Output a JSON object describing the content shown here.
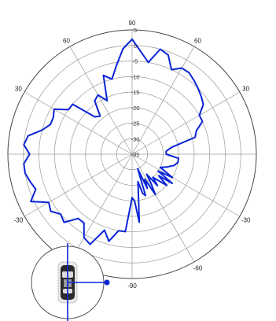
{
  "chart_data": {
    "type": "polar-line",
    "r_unit": "dB",
    "r_range": [
      -35,
      5
    ],
    "r_ticks": [
      "5",
      "0",
      "-5",
      "-10",
      "-15",
      "-20",
      "-25",
      "-30",
      "-35"
    ],
    "angle_labels": [
      "90",
      "60",
      "30",
      "-30",
      "-60",
      "-90",
      "60",
      "30",
      "-30"
    ],
    "grid": true,
    "series_color": "#0a24d6",
    "series": [
      {
        "theta": [
          90,
          85,
          80,
          75,
          70,
          65,
          60,
          55,
          50,
          45,
          40,
          35,
          30,
          25,
          20,
          15,
          10,
          5,
          0,
          -5,
          -10,
          -15,
          -20,
          -25,
          -30,
          -33,
          -36,
          -39,
          -42,
          -45,
          -48,
          -51,
          -54,
          -57,
          -60,
          -63,
          -66,
          -69,
          -72,
          -75,
          -78,
          -81,
          -84,
          -87,
          -90,
          -95,
          -100,
          -105,
          -110,
          -115,
          -120,
          -125,
          -130,
          -135,
          -140,
          -145,
          -150,
          -155,
          -160,
          -165,
          -170,
          -175,
          180,
          175,
          170,
          165,
          160,
          155,
          150,
          145,
          140,
          135,
          130,
          125,
          120,
          115,
          110,
          105,
          100,
          95
        ],
        "r": [
          2,
          -2,
          -5,
          0,
          -1,
          -5,
          -3,
          -3,
          -4,
          -5,
          -6,
          -7,
          -10,
          -10,
          -13,
          -14,
          -22,
          -24,
          -24,
          -20,
          -20,
          -21,
          -23,
          -25,
          -20,
          -25,
          -19,
          -24,
          -20,
          -23,
          -25,
          -22,
          -27,
          -24,
          -20,
          -26,
          -23,
          -30,
          -21,
          -22,
          -26,
          -22,
          -13,
          -20,
          -21,
          -10,
          -10,
          -6,
          -9,
          -3,
          -4,
          -8,
          -8,
          -4,
          -5,
          -3,
          -4,
          1,
          -2,
          -1,
          0,
          0,
          -2,
          0,
          -1,
          -5,
          -7,
          -7,
          -6,
          -10,
          -10,
          -18,
          -19,
          -14,
          -13,
          -16,
          -8,
          -10,
          -6,
          -1
        ]
      }
    ]
  },
  "inset": {
    "icon": "car-top-view-icon",
    "marker_color": "#0a24d6"
  }
}
